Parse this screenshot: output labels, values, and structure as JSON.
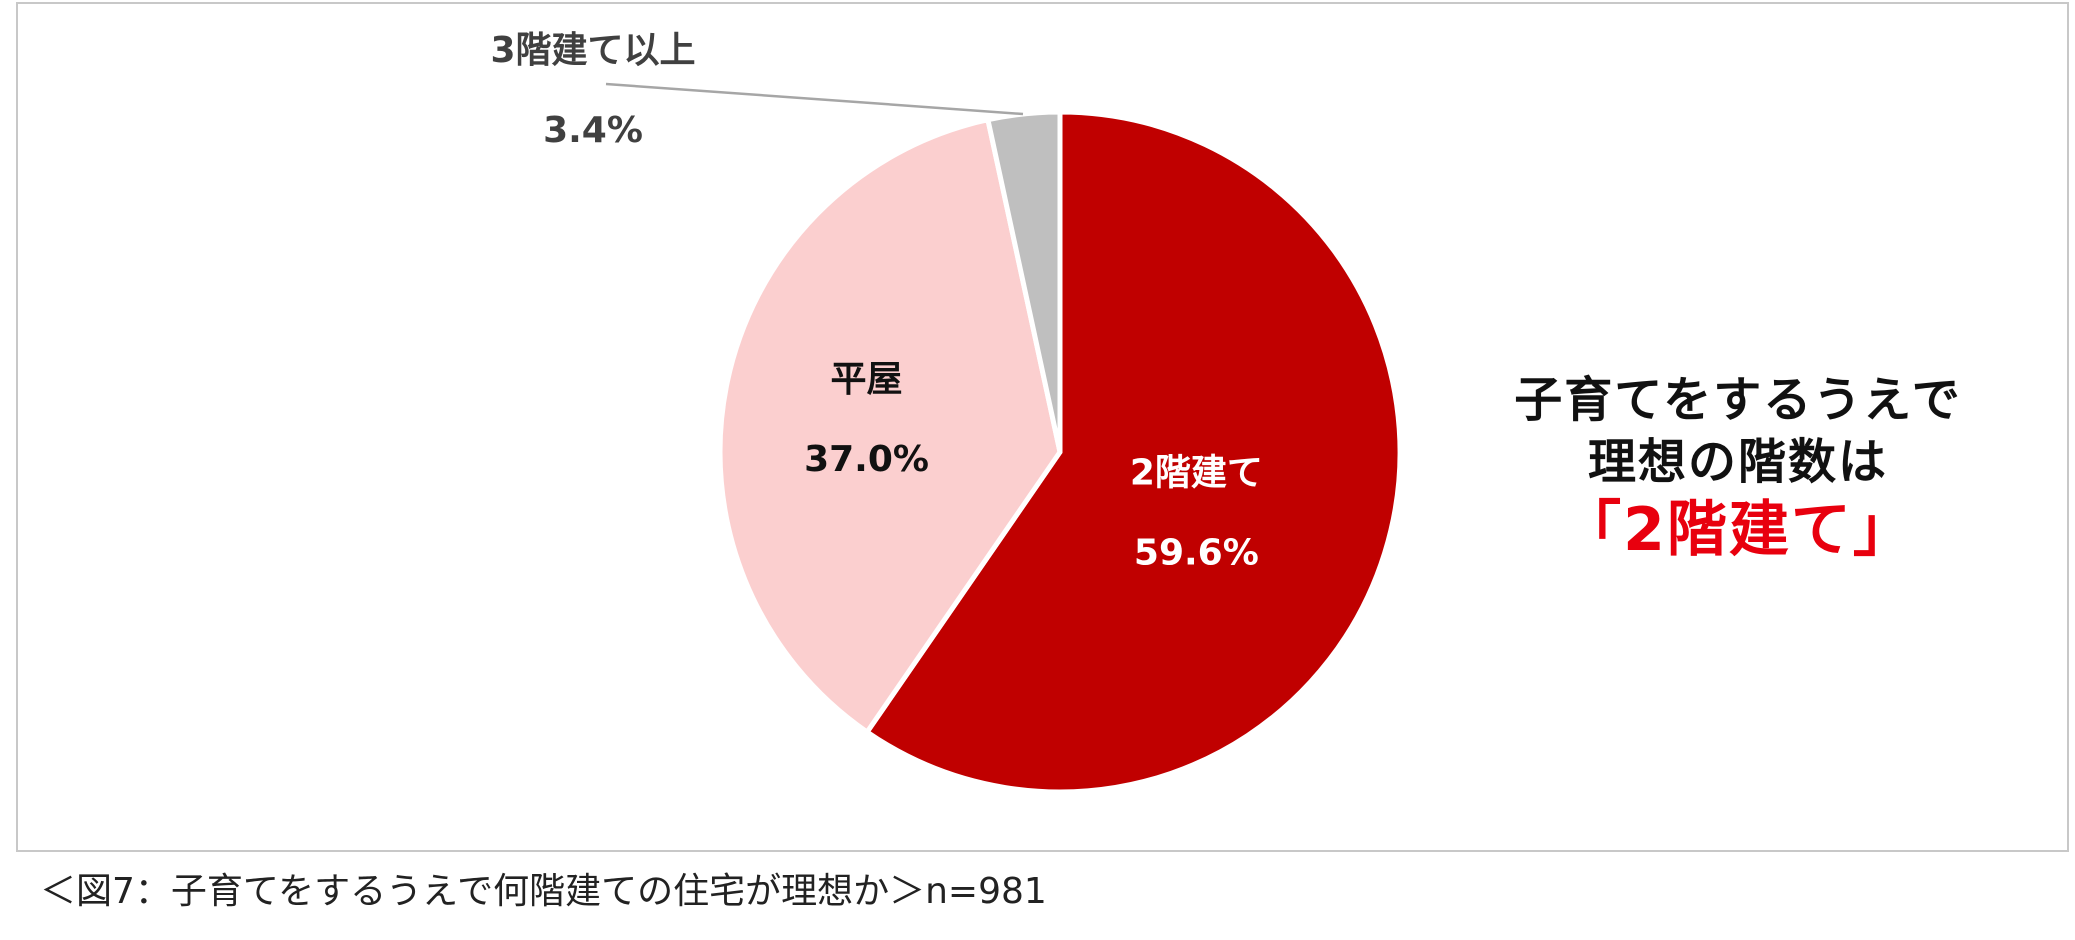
{
  "chart_data": {
    "type": "pie",
    "start_angle_deg": 0,
    "direction": "clockwise",
    "slices": [
      {
        "label": "2階建て",
        "value": 59.6,
        "value_label": "59.6%",
        "color": "#c00000",
        "text_color": "#ffffff"
      },
      {
        "label": "平屋",
        "value": 37.0,
        "value_label": "37.0%",
        "color": "#fbcfcf",
        "text_color": "#111111"
      },
      {
        "label": "3階建て以上",
        "value": 3.4,
        "value_label": "3.4%",
        "color": "#bfbfbf",
        "text_color": "#404040"
      }
    ]
  },
  "headline": {
    "line1": "子育てをするうえで",
    "line2": "理想の階数は",
    "highlight": "「2階建て」"
  },
  "caption": "＜図7：子育てをするうえで何階建ての住宅が理想か＞n=981",
  "colors": {
    "highlight": "#e8000e",
    "frame": "#c8c8c8"
  }
}
